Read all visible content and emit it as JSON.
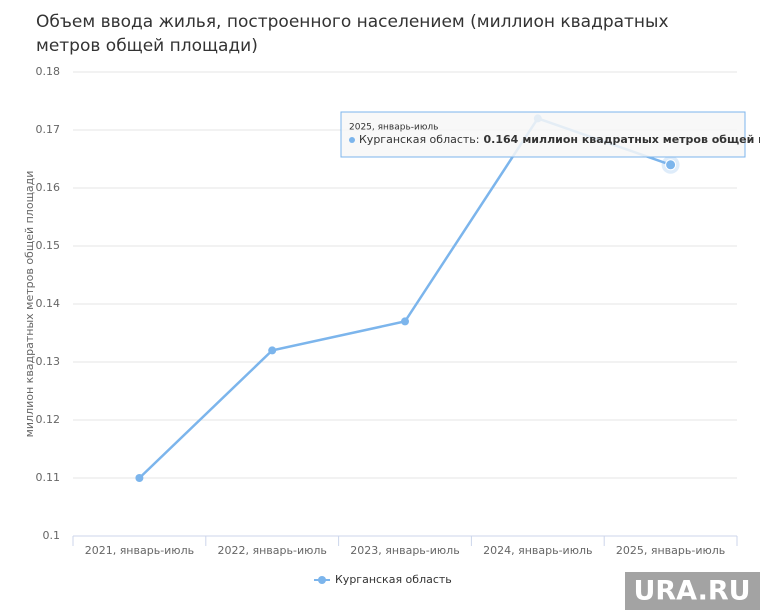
{
  "chart_data": {
    "type": "line",
    "title": "Объем ввода жилья, построенного населением (миллион квадратных метров общей площади)",
    "y_axis_label": "миллион квадратных метров общей площади",
    "categories": [
      "2021, январь-июль",
      "2022, январь-июль",
      "2023, январь-июль",
      "2024, январь-июль",
      "2025, январь-июль"
    ],
    "series": [
      {
        "name": "Курганская область",
        "color": "#7cb5ec",
        "values": [
          0.11,
          0.132,
          0.137,
          0.172,
          0.164
        ]
      }
    ],
    "ylim": [
      0.1,
      0.18
    ],
    "yticks": [
      0.1,
      0.11,
      0.12,
      0.13,
      0.14,
      0.15,
      0.16,
      0.17,
      0.18
    ],
    "grid": true,
    "legend": "bottom",
    "tooltip": {
      "index": 4,
      "separator": ":",
      "unit": "миллион квадратных метров общей площади"
    },
    "watermark": "URA.RU"
  }
}
